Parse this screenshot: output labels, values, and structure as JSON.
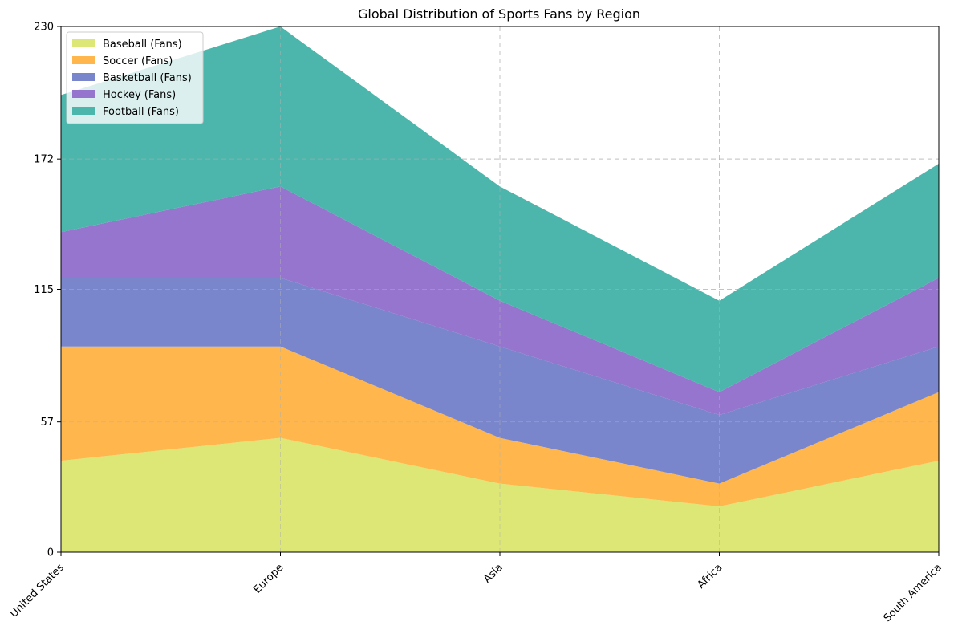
{
  "chart_data": {
    "type": "area",
    "title": "Global Distribution of Sports Fans by Region",
    "xlabel": "",
    "ylabel": "",
    "categories": [
      "United States",
      "Europe",
      "Asia",
      "Africa",
      "South America"
    ],
    "ylim": [
      0,
      230
    ],
    "yticks": [
      "0",
      "57",
      "115",
      "172",
      "230"
    ],
    "stacked": true,
    "grid": true,
    "legend_position": "top-left",
    "series": [
      {
        "name": "Baseball (Fans)",
        "values": [
          40,
          50,
          30,
          20,
          40
        ],
        "color": "#dce775"
      },
      {
        "name": "Soccer (Fans)",
        "values": [
          50,
          40,
          20,
          10,
          30
        ],
        "color": "#ffb74d"
      },
      {
        "name": "Basketball (Fans)",
        "values": [
          30,
          30,
          40,
          30,
          20
        ],
        "color": "#7986cb"
      },
      {
        "name": "Hockey (Fans)",
        "values": [
          20,
          40,
          20,
          10,
          30
        ],
        "color": "#9575cd"
      },
      {
        "name": "Football (Fans)",
        "values": [
          60,
          70,
          50,
          40,
          50
        ],
        "color": "#4db6ac"
      }
    ]
  }
}
